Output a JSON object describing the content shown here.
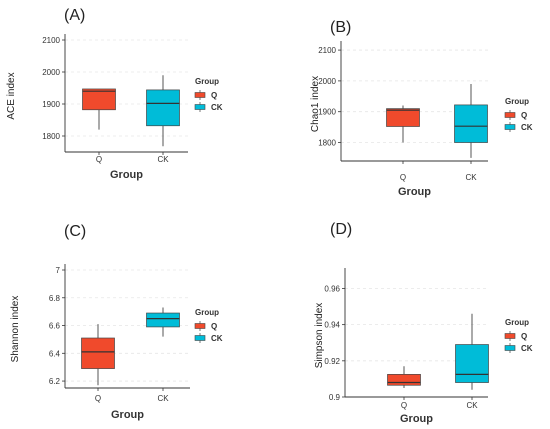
{
  "colors": {
    "Q": "#f04a2c",
    "CK": "#00bcd8"
  },
  "chart_data": [
    {
      "type": "box",
      "panel_label": "(A)",
      "ylabel": "ACE index",
      "xlabel": "Group",
      "categories": [
        "Q",
        "CK"
      ],
      "yticks": [
        1800,
        1900,
        2000,
        2100
      ],
      "ylim": [
        1750,
        2100
      ],
      "boxes": [
        {
          "group": "Q",
          "min": 1820,
          "q1": 1882,
          "median": 1940,
          "q3": 1947,
          "max": 1947
        },
        {
          "group": "CK",
          "min": 1768,
          "q1": 1832,
          "median": 1902,
          "q3": 1944,
          "max": 1990
        }
      ],
      "legend": {
        "title": "Group",
        "entries": [
          "Q",
          "CK"
        ],
        "position": "right"
      }
    },
    {
      "type": "box",
      "panel_label": "(B)",
      "ylabel": "Chao1 index",
      "xlabel": "Group",
      "categories": [
        "Q",
        "CK"
      ],
      "yticks": [
        1800,
        1900,
        2000,
        2100
      ],
      "ylim": [
        1740,
        2110
      ],
      "boxes": [
        {
          "group": "Q",
          "min": 1800,
          "q1": 1852,
          "median": 1905,
          "q3": 1910,
          "max": 1920
        },
        {
          "group": "CK",
          "min": 1750,
          "q1": 1800,
          "median": 1853,
          "q3": 1922,
          "max": 1990
        }
      ],
      "legend": {
        "title": "Group",
        "entries": [
          "Q",
          "CK"
        ],
        "position": "right"
      }
    },
    {
      "type": "box",
      "panel_label": "(C)",
      "ylabel": "Shannon index",
      "xlabel": "Group",
      "categories": [
        "Q",
        "CK"
      ],
      "yticks": [
        6.2,
        6.4,
        6.6,
        6.8,
        7
      ],
      "ylim": [
        6.15,
        7.0
      ],
      "boxes": [
        {
          "group": "Q",
          "min": 6.17,
          "q1": 6.29,
          "median": 6.41,
          "q3": 6.51,
          "max": 6.61
        },
        {
          "group": "CK",
          "min": 6.52,
          "q1": 6.59,
          "median": 6.65,
          "q3": 6.69,
          "max": 6.73
        }
      ],
      "legend": {
        "title": "Group",
        "entries": [
          "Q",
          "CK"
        ],
        "position": "right"
      }
    },
    {
      "type": "box",
      "panel_label": "(D)",
      "ylabel": "Simpson index",
      "xlabel": "Group",
      "categories": [
        "Q",
        "CK"
      ],
      "yticks": [
        0.9,
        0.92,
        0.94,
        0.96
      ],
      "ylim": [
        0.9,
        0.968
      ],
      "boxes": [
        {
          "group": "Q",
          "min": 0.905,
          "q1": 0.9065,
          "median": 0.908,
          "q3": 0.9125,
          "max": 0.917
        },
        {
          "group": "CK",
          "min": 0.904,
          "q1": 0.908,
          "median": 0.9125,
          "q3": 0.929,
          "max": 0.946
        }
      ],
      "legend": {
        "title": "Group",
        "entries": [
          "Q",
          "CK"
        ],
        "position": "right"
      }
    }
  ]
}
